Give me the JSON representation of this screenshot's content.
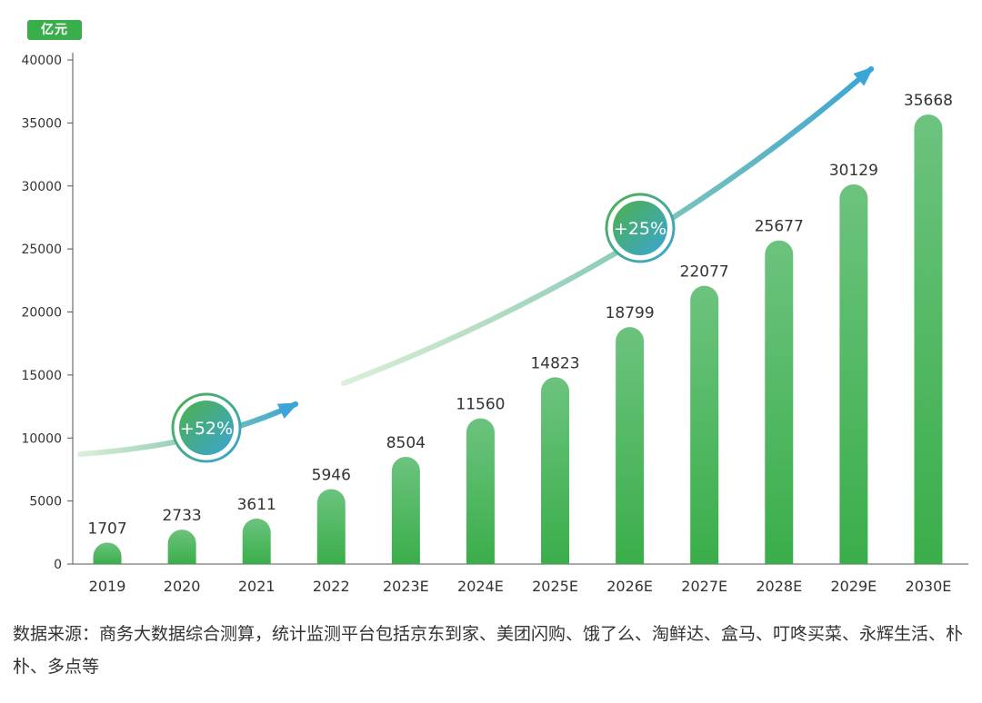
{
  "chart_data": {
    "type": "bar",
    "unit_label": "亿元",
    "categories": [
      "2019",
      "2020",
      "2021",
      "2022",
      "2023E",
      "2024E",
      "2025E",
      "2026E",
      "2027E",
      "2028E",
      "2029E",
      "2030E"
    ],
    "values": [
      1707,
      2733,
      3611,
      5946,
      8504,
      11560,
      14823,
      18799,
      22077,
      25677,
      30129,
      35668
    ],
    "ylim": [
      0,
      40000
    ],
    "yticks": [
      0,
      5000,
      10000,
      15000,
      20000,
      25000,
      30000,
      35000,
      40000
    ],
    "annotations": [
      {
        "label": "+52%"
      },
      {
        "label": "+25%"
      }
    ],
    "colors": {
      "bar_top": "#6cc37e",
      "bar_bottom": "#3aae4a",
      "arrow_start": "#4db04a",
      "arrow_end": "#3aa5d6"
    }
  },
  "source_text": "数据来源：商务大数据综合测算，统计监测平台包括京东到家、美团闪购、饿了么、淘鲜达、盒马、叮咚买菜、永辉生活、朴朴、多点等"
}
